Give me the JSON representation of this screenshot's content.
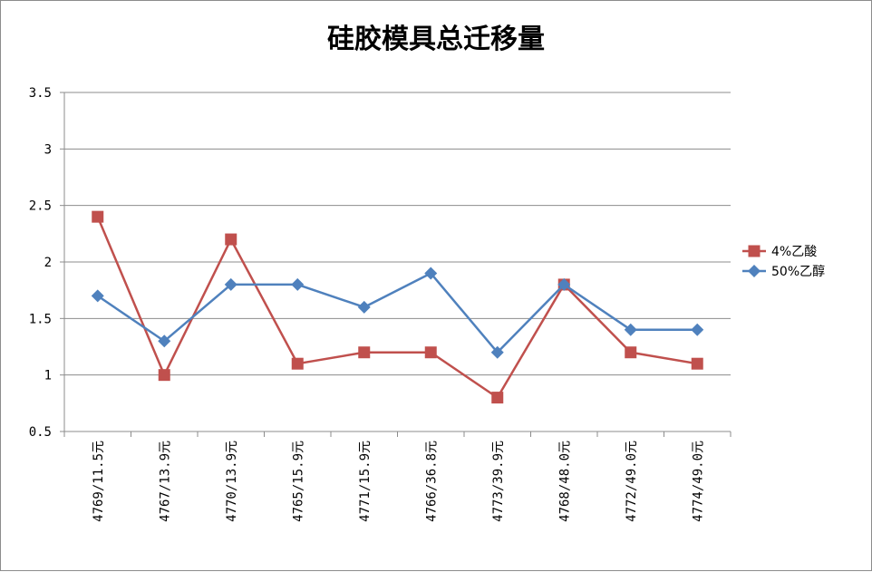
{
  "chart_data": {
    "type": "line",
    "title": "硅胶模具总迁移量",
    "xlabel": "",
    "ylabel": "",
    "ylim": [
      0.5,
      3.5
    ],
    "yticks": [
      "0.5",
      "1",
      "1.5",
      "2",
      "2.5",
      "3",
      "3.5"
    ],
    "grid": true,
    "legend_position": "right",
    "categories": [
      "4769/11.5元",
      "4767/13.9元",
      "4770/13.9元",
      "4765/15.9元",
      "4771/15.9元",
      "4766/36.8元",
      "4773/39.9元",
      "4768/48.0元",
      "4772/49.0元",
      "4774/49.0元"
    ],
    "series": [
      {
        "name": "4%乙酸",
        "color": "#c0504d",
        "marker": "square",
        "values": [
          2.4,
          1.0,
          2.2,
          1.1,
          1.2,
          1.2,
          0.8,
          1.8,
          1.2,
          1.1
        ]
      },
      {
        "name": "50%乙醇",
        "color": "#4f81bd",
        "marker": "diamond",
        "values": [
          1.7,
          1.3,
          1.8,
          1.8,
          1.6,
          1.9,
          1.2,
          1.8,
          1.4,
          1.4
        ]
      }
    ]
  }
}
